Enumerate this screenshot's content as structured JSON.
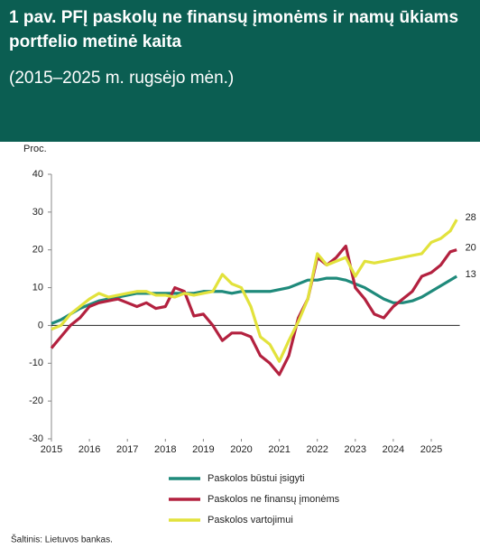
{
  "chart_data": {
    "type": "line",
    "title": "1 pav. PFĮ paskolų ne finansų įmonėms ir namų ūkiams portfelio metinė kaita",
    "subtitle": "(2015–2025 m. rugsėjo mėn.)",
    "y_label": "Proc.",
    "source": "Šaltinis: Lietuvos bankas.",
    "x": [
      2015,
      2015.25,
      2015.5,
      2015.75,
      2016,
      2016.25,
      2016.5,
      2016.75,
      2017,
      2017.25,
      2017.5,
      2017.75,
      2018,
      2018.25,
      2018.5,
      2018.75,
      2019,
      2019.25,
      2019.5,
      2019.75,
      2020,
      2020.25,
      2020.5,
      2020.75,
      2021,
      2021.25,
      2021.5,
      2021.75,
      2022,
      2022.25,
      2022.5,
      2022.75,
      2023,
      2023.25,
      2023.5,
      2023.75,
      2024,
      2024.25,
      2024.5,
      2024.75,
      2025,
      2025.25,
      2025.5,
      2025.67
    ],
    "xlim": [
      2015,
      2025.75
    ],
    "xticks": [
      2015,
      2016,
      2017,
      2018,
      2019,
      2020,
      2021,
      2022,
      2023,
      2024,
      2025
    ],
    "ylim": [
      -30,
      40
    ],
    "yticks": [
      -30,
      -20,
      -10,
      0,
      10,
      20,
      30,
      40
    ],
    "grid": false,
    "series": [
      {
        "name": "Paskolos būstui įsigyti",
        "color": "#1f8a7b",
        "end_label": 13,
        "values": [
          0.5,
          1.5,
          3,
          4.5,
          5.5,
          6.5,
          7,
          7.5,
          8,
          8.5,
          8.5,
          8.5,
          8.5,
          8.5,
          8.5,
          8.5,
          9,
          9,
          9,
          8.5,
          9,
          9,
          9,
          9,
          9.5,
          10,
          11,
          12,
          12,
          12.5,
          12.5,
          12,
          11,
          10,
          8.5,
          7,
          6,
          6,
          6.5,
          7.5,
          9,
          10.5,
          12,
          13
        ]
      },
      {
        "name": "Paskolos ne finansų įmonėms",
        "color": "#b3213f",
        "end_label": 20,
        "values": [
          -6,
          -3,
          0,
          2,
          5,
          6,
          6.5,
          7,
          6,
          5,
          6,
          4.5,
          5,
          10,
          9,
          2.5,
          3,
          0,
          -4,
          -2,
          -2,
          -3,
          -8,
          -10,
          -13,
          -8,
          2,
          7,
          18,
          16,
          18,
          21,
          10,
          7,
          3,
          2,
          5,
          7,
          9,
          13,
          14,
          16,
          19.5,
          20
        ]
      },
      {
        "name": "Paskolos vartojimui",
        "color": "#e2e23c",
        "end_label": 28,
        "values": [
          -1,
          0,
          3,
          5,
          7,
          8.5,
          7.5,
          8,
          8.5,
          9,
          9,
          8,
          8,
          7.5,
          8.5,
          8,
          8.5,
          9,
          13.5,
          11,
          10,
          5,
          -3,
          -5,
          -9.5,
          -4,
          1,
          7,
          19,
          16,
          17,
          18,
          13,
          17,
          16.5,
          17,
          17.5,
          18,
          18.5,
          19,
          22,
          23,
          25,
          28
        ]
      }
    ]
  }
}
